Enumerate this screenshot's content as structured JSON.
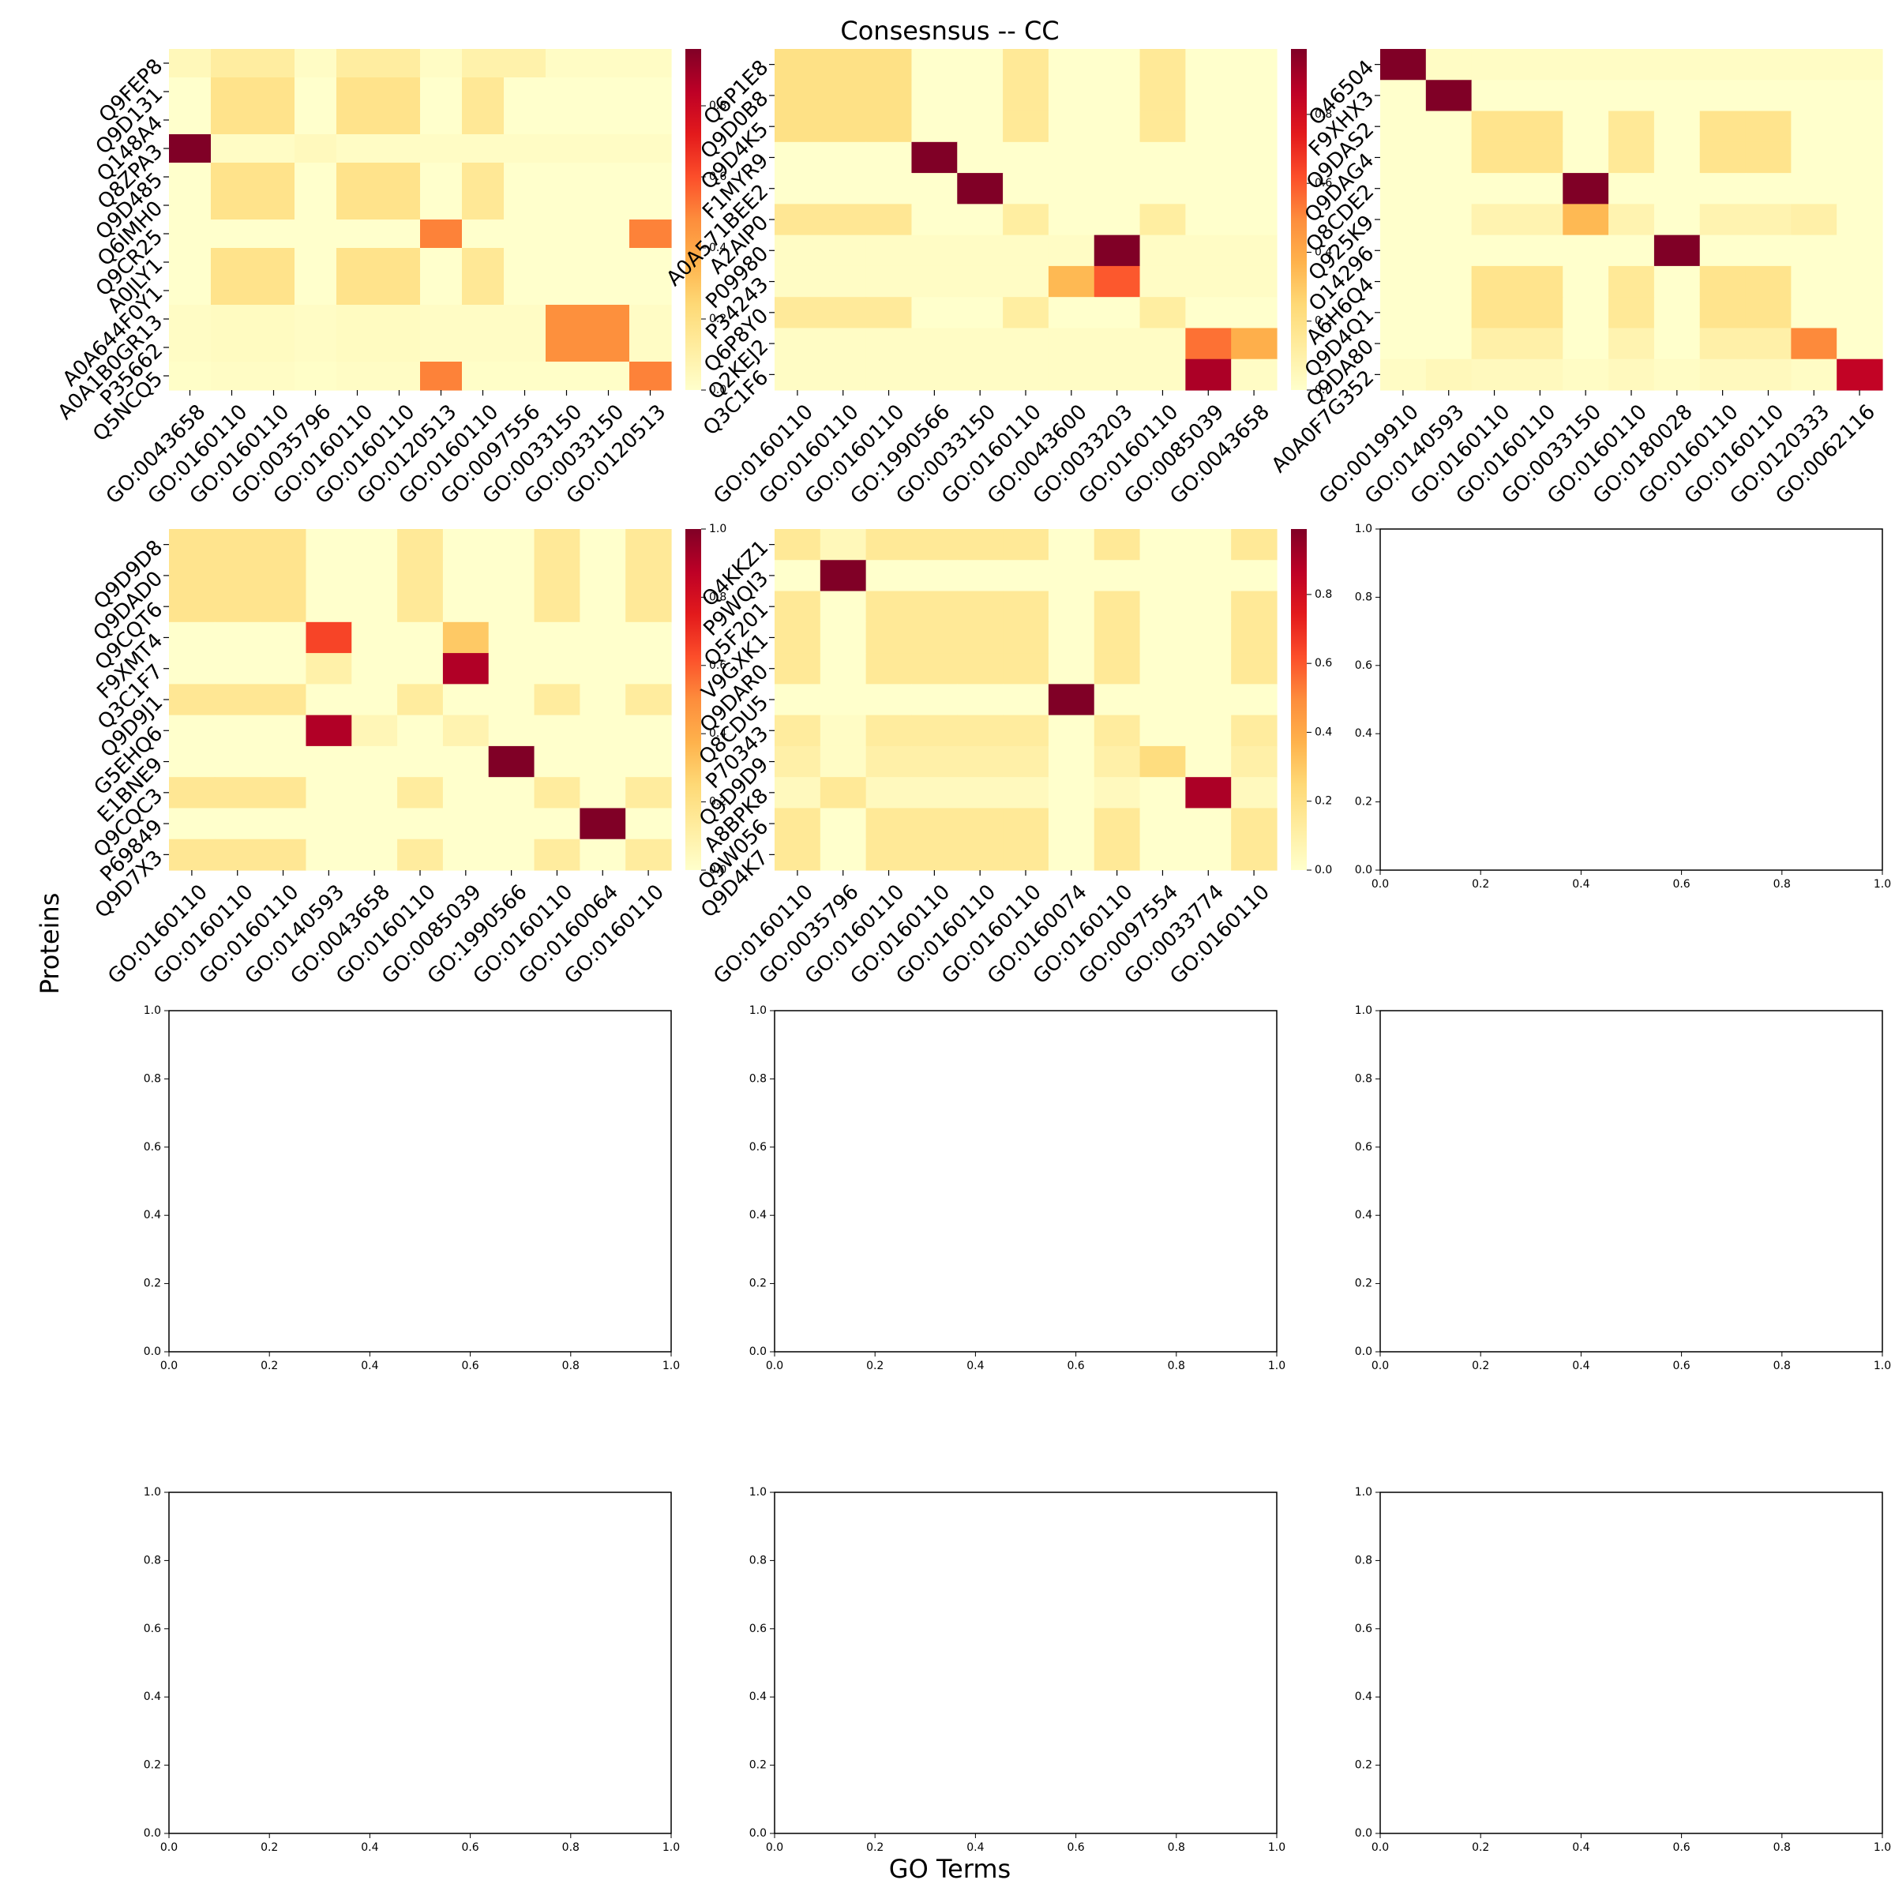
{
  "figure": {
    "title": "Consesnsus -- CC",
    "xlabel": "GO Terms",
    "ylabel": "Proteins",
    "colormap": "YlOrRd",
    "colorbar_ticks": [
      "0.0",
      "0.2",
      "0.4",
      "0.6",
      "0.8",
      "1.0"
    ],
    "empty_axis_ticks": [
      "0.0",
      "0.2",
      "0.4",
      "0.6",
      "0.8",
      "1.0"
    ]
  },
  "chart_data": [
    {
      "type": "heatmap",
      "vmax": 0.96,
      "rows": [
        "Q9FEP8",
        "Q9D131",
        "Q148A4",
        "Q8ZPA3",
        "Q9D485",
        "Q6IMH0",
        "Q9CR25",
        "A0JLY1",
        "A0A644F0Y1",
        "A0A1B0GR13",
        "P35662",
        "Q5NCQ5"
      ],
      "cols": [
        "GO:0043658",
        "GO:0160110",
        "GO:0160110",
        "GO:0035796",
        "GO:0160110",
        "GO:0160110",
        "GO:0120513",
        "GO:0160110",
        "GO:0097556",
        "GO:0033150",
        "GO:0033150",
        "GO:0120513"
      ],
      "values": [
        [
          0.05,
          0.12,
          0.12,
          0.02,
          0.12,
          0.12,
          0.02,
          0.09,
          0.09,
          0.02,
          0.02,
          0.02
        ],
        [
          0.0,
          0.18,
          0.18,
          0.0,
          0.18,
          0.18,
          0.0,
          0.15,
          0.0,
          0.0,
          0.0,
          0.0
        ],
        [
          0.0,
          0.18,
          0.18,
          0.0,
          0.18,
          0.18,
          0.0,
          0.15,
          0.0,
          0.0,
          0.0,
          0.0
        ],
        [
          0.96,
          0.02,
          0.02,
          0.04,
          0.02,
          0.02,
          0.02,
          0.02,
          0.02,
          0.02,
          0.02,
          0.02
        ],
        [
          0.0,
          0.18,
          0.18,
          0.0,
          0.18,
          0.18,
          0.0,
          0.15,
          0.0,
          0.0,
          0.0,
          0.0
        ],
        [
          0.0,
          0.18,
          0.18,
          0.0,
          0.18,
          0.18,
          0.0,
          0.15,
          0.0,
          0.0,
          0.0,
          0.0
        ],
        [
          0.0,
          0.0,
          0.0,
          0.0,
          0.0,
          0.0,
          0.5,
          0.0,
          0.0,
          0.0,
          0.0,
          0.5
        ],
        [
          0.0,
          0.18,
          0.18,
          0.0,
          0.18,
          0.18,
          0.0,
          0.15,
          0.0,
          0.0,
          0.0,
          0.0
        ],
        [
          0.0,
          0.18,
          0.18,
          0.0,
          0.18,
          0.18,
          0.0,
          0.15,
          0.0,
          0.0,
          0.0,
          0.0
        ],
        [
          0.02,
          0.03,
          0.03,
          0.02,
          0.03,
          0.03,
          0.02,
          0.02,
          0.02,
          0.47,
          0.47,
          0.02
        ],
        [
          0.02,
          0.03,
          0.03,
          0.02,
          0.03,
          0.03,
          0.02,
          0.02,
          0.02,
          0.47,
          0.47,
          0.02
        ],
        [
          0.01,
          0.02,
          0.02,
          0.01,
          0.02,
          0.02,
          0.5,
          0.01,
          0.01,
          0.01,
          0.01,
          0.5
        ]
      ]
    },
    {
      "type": "heatmap",
      "vmax": 0.99,
      "rows": [
        "Q6P1E8",
        "Q9D0B8",
        "Q9D4K5",
        "F1MYR9",
        "A0A571BEE2",
        "A2AIP0",
        "P09980",
        "P34243",
        "Q6P8Y0",
        "Q2KEJ2",
        "Q3C1F6"
      ],
      "cols": [
        "GO:0160110",
        "GO:0160110",
        "GO:0160110",
        "GO:1990566",
        "GO:0033150",
        "GO:0160110",
        "GO:0043600",
        "GO:0033203",
        "GO:0160110",
        "GO:0085039",
        "GO:0043658"
      ],
      "values": [
        [
          0.2,
          0.2,
          0.2,
          0.0,
          0.0,
          0.15,
          0.0,
          0.0,
          0.15,
          0.0,
          0.0
        ],
        [
          0.2,
          0.2,
          0.2,
          0.0,
          0.0,
          0.15,
          0.0,
          0.0,
          0.15,
          0.0,
          0.0
        ],
        [
          0.2,
          0.2,
          0.2,
          0.0,
          0.0,
          0.15,
          0.0,
          0.0,
          0.15,
          0.0,
          0.0
        ],
        [
          0.0,
          0.0,
          0.0,
          0.99,
          0.0,
          0.0,
          0.0,
          0.0,
          0.0,
          0.0,
          0.0
        ],
        [
          0.0,
          0.0,
          0.0,
          0.0,
          0.99,
          0.0,
          0.0,
          0.0,
          0.0,
          0.0,
          0.0
        ],
        [
          0.16,
          0.16,
          0.16,
          0.0,
          0.0,
          0.12,
          0.0,
          0.0,
          0.12,
          0.0,
          0.0
        ],
        [
          0.02,
          0.02,
          0.02,
          0.02,
          0.02,
          0.02,
          0.02,
          0.99,
          0.02,
          0.02,
          0.02
        ],
        [
          0.02,
          0.02,
          0.02,
          0.02,
          0.02,
          0.02,
          0.35,
          0.6,
          0.02,
          0.02,
          0.02
        ],
        [
          0.14,
          0.14,
          0.14,
          0.0,
          0.0,
          0.12,
          0.0,
          0.0,
          0.12,
          0.0,
          0.0
        ],
        [
          0.02,
          0.02,
          0.02,
          0.02,
          0.02,
          0.02,
          0.02,
          0.02,
          0.02,
          0.55,
          0.38
        ],
        [
          0.02,
          0.02,
          0.02,
          0.02,
          0.02,
          0.02,
          0.02,
          0.02,
          0.02,
          0.9,
          0.02
        ]
      ]
    },
    {
      "type": "heatmap",
      "vmax": 0.99,
      "rows": [
        "O46504",
        "F9XHX3",
        "Q9DAS2",
        "Q9DAG4",
        "Q8CDE2",
        "Q925K9",
        "O14296",
        "A6H6Q4",
        "Q9D4Q1",
        "Q9DA80",
        "A0A0F7G352"
      ],
      "cols": [
        "GO:0019910",
        "GO:0140593",
        "GO:0160110",
        "GO:0160110",
        "GO:0033150",
        "GO:0160110",
        "GO:0180028",
        "GO:0160110",
        "GO:0160110",
        "GO:0120333",
        "GO:0062116"
      ],
      "values": [
        [
          0.99,
          0.02,
          0.02,
          0.02,
          0.02,
          0.02,
          0.02,
          0.02,
          0.02,
          0.02,
          0.02
        ],
        [
          0.0,
          0.99,
          0.0,
          0.0,
          0.0,
          0.0,
          0.0,
          0.0,
          0.0,
          0.0,
          0.0
        ],
        [
          0.0,
          0.0,
          0.18,
          0.18,
          0.0,
          0.15,
          0.0,
          0.18,
          0.18,
          0.0,
          0.0
        ],
        [
          0.0,
          0.0,
          0.18,
          0.18,
          0.0,
          0.15,
          0.0,
          0.18,
          0.18,
          0.0,
          0.0
        ],
        [
          0.0,
          0.0,
          0.0,
          0.0,
          0.99,
          0.0,
          0.0,
          0.0,
          0.0,
          0.0,
          0.0
        ],
        [
          0.0,
          0.0,
          0.08,
          0.08,
          0.35,
          0.08,
          0.0,
          0.08,
          0.08,
          0.1,
          0.0
        ],
        [
          0.0,
          0.0,
          0.0,
          0.0,
          0.0,
          0.0,
          0.99,
          0.0,
          0.0,
          0.0,
          0.0
        ],
        [
          0.0,
          0.0,
          0.18,
          0.18,
          0.0,
          0.15,
          0.0,
          0.18,
          0.18,
          0.0,
          0.0
        ],
        [
          0.0,
          0.0,
          0.18,
          0.18,
          0.0,
          0.15,
          0.0,
          0.18,
          0.18,
          0.0,
          0.0
        ],
        [
          0.0,
          0.0,
          0.1,
          0.1,
          0.0,
          0.08,
          0.0,
          0.1,
          0.1,
          0.5,
          0.0
        ],
        [
          0.02,
          0.05,
          0.04,
          0.04,
          0.02,
          0.04,
          0.02,
          0.04,
          0.04,
          0.02,
          0.85
        ]
      ]
    },
    {
      "type": "heatmap",
      "vmax": 1.0,
      "rows": [
        "Q9D9D8",
        "Q9DAD0",
        "Q9CQT6",
        "F9XMT4",
        "Q3C1F7",
        "Q9D9J1",
        "G5EHQ6",
        "E1BNE9",
        "Q9CQC3",
        "P69849",
        "Q9D7X3"
      ],
      "cols": [
        "GO:0160110",
        "GO:0160110",
        "GO:0160110",
        "GO:0140593",
        "GO:0043658",
        "GO:0160110",
        "GO:0085039",
        "GO:1990566",
        "GO:0160110",
        "GO:0160064",
        "GO:0160110"
      ],
      "values": [
        [
          0.18,
          0.18,
          0.18,
          0.0,
          0.0,
          0.15,
          0.0,
          0.0,
          0.15,
          0.0,
          0.15
        ],
        [
          0.18,
          0.18,
          0.18,
          0.0,
          0.0,
          0.15,
          0.0,
          0.0,
          0.15,
          0.0,
          0.15
        ],
        [
          0.18,
          0.18,
          0.18,
          0.0,
          0.0,
          0.15,
          0.0,
          0.0,
          0.15,
          0.0,
          0.15
        ],
        [
          0.0,
          0.0,
          0.0,
          0.65,
          0.0,
          0.0,
          0.3,
          0.0,
          0.0,
          0.0,
          0.0
        ],
        [
          0.0,
          0.0,
          0.0,
          0.1,
          0.0,
          0.0,
          0.9,
          0.0,
          0.0,
          0.0,
          0.0
        ],
        [
          0.16,
          0.16,
          0.16,
          0.0,
          0.0,
          0.13,
          0.0,
          0.0,
          0.13,
          0.0,
          0.13
        ],
        [
          0.0,
          0.0,
          0.0,
          0.9,
          0.06,
          0.0,
          0.08,
          0.0,
          0.0,
          0.0,
          0.0
        ],
        [
          0.0,
          0.0,
          0.0,
          0.0,
          0.0,
          0.0,
          0.0,
          1.0,
          0.0,
          0.0,
          0.0
        ],
        [
          0.16,
          0.16,
          0.16,
          0.0,
          0.0,
          0.13,
          0.0,
          0.0,
          0.13,
          0.0,
          0.13
        ],
        [
          0.0,
          0.0,
          0.0,
          0.0,
          0.0,
          0.0,
          0.0,
          0.0,
          0.0,
          1.0,
          0.0
        ],
        [
          0.16,
          0.16,
          0.16,
          0.0,
          0.0,
          0.13,
          0.0,
          0.0,
          0.13,
          0.0,
          0.13
        ]
      ]
    },
    {
      "type": "heatmap",
      "vmax": 0.99,
      "rows": [
        "Q4KKZ1",
        "P9WQI3",
        "Q5F201",
        "V9GXK1",
        "Q9DAR0",
        "Q8CDU5",
        "P70343",
        "Q9D9D9",
        "A8BPK8",
        "Q9W056",
        "Q9D4K7"
      ],
      "cols": [
        "GO:0160110",
        "GO:0035796",
        "GO:0160110",
        "GO:0160110",
        "GO:0160110",
        "GO:0160110",
        "GO:0160074",
        "GO:0160110",
        "GO:0097554",
        "GO:0033774",
        "GO:0160110"
      ],
      "values": [
        [
          0.15,
          0.05,
          0.15,
          0.15,
          0.15,
          0.15,
          0.0,
          0.15,
          0.0,
          0.0,
          0.15
        ],
        [
          0.0,
          0.99,
          0.0,
          0.0,
          0.0,
          0.0,
          0.0,
          0.0,
          0.0,
          0.0,
          0.0
        ],
        [
          0.15,
          0.0,
          0.15,
          0.15,
          0.15,
          0.15,
          0.0,
          0.15,
          0.0,
          0.0,
          0.15
        ],
        [
          0.15,
          0.0,
          0.15,
          0.15,
          0.15,
          0.15,
          0.0,
          0.15,
          0.0,
          0.0,
          0.15
        ],
        [
          0.15,
          0.0,
          0.15,
          0.15,
          0.15,
          0.15,
          0.0,
          0.15,
          0.0,
          0.0,
          0.15
        ],
        [
          0.0,
          0.0,
          0.0,
          0.0,
          0.0,
          0.0,
          0.99,
          0.0,
          0.0,
          0.0,
          0.0
        ],
        [
          0.13,
          0.02,
          0.13,
          0.13,
          0.13,
          0.13,
          0.0,
          0.13,
          0.0,
          0.0,
          0.13
        ],
        [
          0.1,
          0.02,
          0.1,
          0.1,
          0.1,
          0.1,
          0.0,
          0.1,
          0.22,
          0.0,
          0.1
        ],
        [
          0.04,
          0.15,
          0.04,
          0.04,
          0.04,
          0.04,
          0.0,
          0.04,
          0.0,
          0.9,
          0.04
        ],
        [
          0.15,
          0.0,
          0.15,
          0.15,
          0.15,
          0.15,
          0.0,
          0.15,
          0.0,
          0.0,
          0.15
        ],
        [
          0.15,
          0.0,
          0.15,
          0.15,
          0.15,
          0.15,
          0.0,
          0.15,
          0.0,
          0.0,
          0.15
        ]
      ]
    },
    {
      "type": "empty",
      "xlim": [
        0,
        1
      ],
      "ylim": [
        0,
        1
      ]
    },
    {
      "type": "empty",
      "xlim": [
        0,
        1
      ],
      "ylim": [
        0,
        1
      ]
    },
    {
      "type": "empty",
      "xlim": [
        0,
        1
      ],
      "ylim": [
        0,
        1
      ]
    },
    {
      "type": "empty",
      "xlim": [
        0,
        1
      ],
      "ylim": [
        0,
        1
      ]
    },
    {
      "type": "empty",
      "xlim": [
        0,
        1
      ],
      "ylim": [
        0,
        1
      ]
    },
    {
      "type": "empty",
      "xlim": [
        0,
        1
      ],
      "ylim": [
        0,
        1
      ]
    },
    {
      "type": "empty",
      "xlim": [
        0,
        1
      ],
      "ylim": [
        0,
        1
      ]
    }
  ]
}
